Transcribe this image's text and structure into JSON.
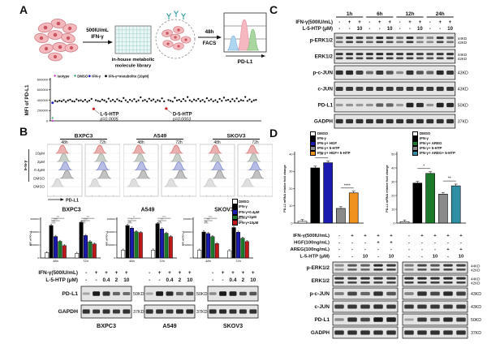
{
  "figure": {
    "panel_labels": {
      "A": "A",
      "B": "B",
      "C": "C",
      "D": "D"
    }
  },
  "colors": {
    "bar_white": "#ffffff",
    "bar_black": "#000000",
    "bar_blue": "#1a1ab0",
    "bar_green": "#1a7a2a",
    "bar_red": "#c01818",
    "bar_gray": "#8a8a8a",
    "bar_orange": "#f0921e",
    "bar_teal": "#2e8fa5",
    "isotype_magenta": "#cc00cc",
    "dmso_green": "#00a651",
    "ifn_blue": "#2020c0",
    "hit_red": "#cc2222",
    "scatter_black": "#111111"
  },
  "panelA": {
    "schematic": {
      "treatment": [
        "500IU/mL",
        "IFN-γ"
      ],
      "plate_caption": [
        "in-house metabolic",
        "molecule library"
      ],
      "facs": [
        "48h",
        "FACS"
      ],
      "facs_xlabel": "PD-L1"
    }
  },
  "panelB": {
    "flow": {
      "cell_lines": [
        "BXPC3",
        "A549",
        "SKOV3"
      ],
      "timepoints": [
        "48h",
        "72h"
      ],
      "dose_labels": [
        "10μM",
        "2μM",
        "0.4μM",
        "DMSO",
        "DMSO"
      ],
      "bracket_label": "IFN-γ",
      "xlabel": "PD-L1",
      "ridges": [
        {
          "color": "#d97070",
          "peak": 0.44
        },
        {
          "color": "#9aa89a",
          "peak": 0.48
        },
        {
          "color": "#7b86cf",
          "peak": 0.52
        },
        {
          "color": "#8f8f8f",
          "peak": 0.57
        },
        {
          "color": "#c4c4c4",
          "peak": 0.3
        }
      ]
    },
    "legend": [
      {
        "label": "DMSO",
        "color": "#ffffff"
      },
      {
        "label": "IFN-γ",
        "color": "#000000"
      },
      {
        "label": "IFN-γ+0.4μM",
        "color": "#1a1ab0"
      },
      {
        "label": "IFN-γ+2μM",
        "color": "#1a7a2a"
      },
      {
        "label": "IFN-γ+10μM",
        "color": "#c01818"
      }
    ],
    "wb": {
      "header_rows": [
        {
          "label": "IFN-γ(500IU/mL)",
          "values": [
            "-",
            "+",
            "+",
            "+",
            "+"
          ]
        },
        {
          "label": "L-5-HTP (μM)",
          "values": [
            "-",
            "-",
            "0.4",
            "2",
            "10"
          ]
        }
      ],
      "groups": [
        {
          "name": "BXPC3",
          "kd_visible": true
        },
        {
          "name": "A549",
          "kd_visible": true
        },
        {
          "name": "SKOV3",
          "kd_visible": false
        }
      ],
      "rows": [
        {
          "label": "PD-L1",
          "kd": "50KD",
          "bands": [
            [
              0.08,
              1,
              0.85,
              0.5,
              0.45
            ],
            [
              0.08,
              1,
              0.9,
              0.5,
              0.6
            ],
            [
              0.25,
              1,
              0.95,
              0.65,
              0.6
            ]
          ]
        },
        {
          "label": "GAPDH",
          "kd": "37KD",
          "bands": [
            [
              0.85,
              0.8,
              0.85,
              0.8,
              0.85
            ],
            [
              0.85,
              0.85,
              0.8,
              0.9,
              0.9
            ],
            [
              0.9,
              0.9,
              0.85,
              0.85,
              0.85
            ]
          ]
        }
      ]
    }
  },
  "panelC": {
    "timepoints": [
      "1h",
      "6h",
      "12h",
      "24h"
    ],
    "header_rows": [
      {
        "label": "IFN-γ(500IU/mL)",
        "values": [
          "-",
          "+",
          "+",
          "-",
          "+",
          "+",
          "-",
          "+",
          "+",
          "-",
          "+",
          "+"
        ]
      },
      {
        "label": "L-5-HTP (μM)",
        "values": [
          "-",
          "-",
          "10",
          "-",
          "-",
          "10",
          "-",
          "-",
          "10",
          "-",
          "-",
          "10"
        ]
      }
    ],
    "rows": [
      {
        "label": "p-ERK1/2",
        "kd": [
          "44KD",
          "42KD"
        ],
        "double": true,
        "bands": [
          0.5,
          0.85,
          0.75,
          0.55,
          0.9,
          0.7,
          0.45,
          0.9,
          0.35,
          0.3,
          0.8,
          0.5
        ]
      },
      {
        "label": "ERK1/2",
        "kd": [
          "44KD",
          "42KD"
        ],
        "double": true,
        "bands": [
          0.8,
          0.85,
          0.8,
          0.85,
          0.9,
          0.85,
          0.8,
          0.85,
          0.75,
          0.7,
          0.8,
          0.85
        ]
      },
      {
        "label": "p-c-JUN",
        "kd": [
          "43KD"
        ],
        "double": false,
        "bands": [
          0.85,
          0.9,
          0.75,
          0.45,
          0.8,
          0.6,
          0.25,
          0.85,
          0.6,
          0.5,
          0.9,
          0.8
        ]
      },
      {
        "label": "c-JUN",
        "kd": [
          "43KD"
        ],
        "double": false,
        "bands": [
          0.8,
          0.8,
          0.75,
          0.8,
          0.8,
          0.8,
          0.75,
          0.8,
          0.8,
          0.8,
          0.85,
          0.8
        ]
      },
      {
        "label": "PD-L1",
        "kd": [
          "50KD"
        ],
        "double": false,
        "bands": [
          0.15,
          0.2,
          0.15,
          0.2,
          0.55,
          0.5,
          0.15,
          0.95,
          0.85,
          0.2,
          0.95,
          0.9
        ]
      },
      {
        "label": "GADPH",
        "kd": [
          "37KD"
        ],
        "double": false,
        "bands": [
          0.85,
          0.85,
          0.85,
          0.85,
          0.85,
          0.85,
          0.85,
          0.85,
          0.85,
          0.85,
          0.85,
          0.85
        ]
      }
    ]
  },
  "panelD": {
    "header_rows": [
      {
        "label": "IFN-γ(500IU/mL)",
        "left": [
          "-",
          "+",
          "+",
          "+",
          "+"
        ],
        "right": [
          "-",
          "+",
          "+",
          "+",
          "+"
        ]
      },
      {
        "label": "HGF(100ng/mL)",
        "left": [
          "-",
          "-",
          "-",
          "+",
          "+"
        ],
        "right": [
          "-",
          "-",
          "-",
          "-",
          "-"
        ]
      },
      {
        "label": "AREG(100ng/mL)",
        "left": [
          "-",
          "-",
          "-",
          "-",
          "-"
        ],
        "right": [
          "-",
          "-",
          "-",
          "+",
          "+"
        ]
      },
      {
        "label": "L-5-HTP (μM)",
        "left": [
          "-",
          "-",
          "10",
          "-",
          "10"
        ],
        "right": [
          "-",
          "-",
          "10",
          "-",
          "10"
        ]
      }
    ],
    "rows": [
      {
        "label": "p-ERK1/2",
        "kd": [
          "44KD",
          "42KD"
        ],
        "double": true,
        "left": [
          0.25,
          0.6,
          0.55,
          0.9,
          0.8
        ],
        "right": [
          0.35,
          0.7,
          0.6,
          0.8,
          0.75
        ]
      },
      {
        "label": "ERK1/2",
        "kd": [
          "44KD",
          "42KD"
        ],
        "double": true,
        "left": [
          0.8,
          0.8,
          0.85,
          0.8,
          0.8
        ],
        "right": [
          0.85,
          0.9,
          0.85,
          0.9,
          0.85
        ]
      },
      {
        "label": "p-c-JUN",
        "kd": [
          "43KD"
        ],
        "double": false,
        "left": [
          0.35,
          0.7,
          0.5,
          0.85,
          0.6
        ],
        "right": [
          0.3,
          0.85,
          0.7,
          0.9,
          0.75
        ]
      },
      {
        "label": "c-JUN",
        "kd": [
          "43KD"
        ],
        "double": false,
        "left": [
          0.75,
          0.8,
          0.8,
          0.85,
          0.8
        ],
        "right": [
          0.8,
          0.8,
          0.8,
          0.8,
          0.8
        ]
      },
      {
        "label": "PD-L1",
        "kd": [
          "50KD"
        ],
        "double": false,
        "left": [
          0.25,
          0.85,
          0.7,
          1,
          0.95
        ],
        "right": [
          0.1,
          0.8,
          0.6,
          0.9,
          0.8
        ]
      },
      {
        "label": "GADPH",
        "kd": [
          "37KD"
        ],
        "double": false,
        "left": [
          0.85,
          0.85,
          0.85,
          0.85,
          0.85
        ],
        "right": [
          0.85,
          0.85,
          0.85,
          0.85,
          0.85
        ]
      }
    ]
  },
  "chart_data": [
    {
      "id": "mfi-screen",
      "type": "scatter",
      "ylabel": "MFI of PD-L1",
      "ylim": [
        0,
        800000
      ],
      "yticks": [
        0,
        200000,
        400000,
        600000,
        800000
      ],
      "legend": [
        {
          "label": "isotype",
          "color": "#cc00cc",
          "marker": "plus"
        },
        {
          "label": "DMSO",
          "color": "#00a651",
          "marker": "plus"
        },
        {
          "label": "IFN-γ",
          "color": "#2020c0",
          "marker": "dot"
        },
        {
          "label": "IFN-γ+metabolite (10μM)",
          "color": "#000000",
          "marker": "dot"
        }
      ],
      "controls": [
        {
          "label": "isotype",
          "value_thousands": 8,
          "color": "#cc00cc",
          "marker": "plus"
        },
        {
          "label": "DMSO",
          "value_thousands": 60,
          "color": "#00a651",
          "marker": "plus"
        },
        {
          "label": "IFN-γ",
          "value_thousands": 350,
          "color": "#2020c0",
          "marker": "dot"
        }
      ],
      "mfi_values_thousands": [
        385,
        372,
        390,
        378,
        402,
        368,
        395,
        410,
        380,
        374,
        415,
        388,
        398,
        376,
        405,
        370,
        392,
        425,
        232,
        400,
        385,
        378,
        412,
        395,
        368,
        430,
        382,
        406,
        374,
        418,
        390,
        377,
        442,
        398,
        365,
        408,
        384,
        420,
        372,
        396,
        455,
        386,
        403,
        375,
        428,
        391,
        414,
        369,
        399,
        383,
        435,
        379,
        238,
        402,
        388,
        372,
        446,
        394,
        407,
        376,
        421,
        385,
        460,
        397,
        373,
        411,
        389,
        426,
        381,
        404,
        370,
        438,
        392,
        416,
        378,
        400,
        366,
        423,
        387,
        450,
        395,
        408,
        374,
        419,
        383,
        432,
        377,
        401,
        390,
        462,
        386,
        413,
        371,
        397,
        405
      ],
      "hits": [
        {
          "index": 18,
          "label": "L-5-HTP",
          "p": "p=0.0005",
          "color": "#cc2222"
        },
        {
          "index": 52,
          "label": "D-5-HTP",
          "p": "p=0.0003",
          "color": "#cc2222"
        }
      ]
    },
    {
      "id": "bxpc3-mfi",
      "type": "bar",
      "title": "BXPC3",
      "ylabel": "MFI of PD-L1",
      "categories": [
        "48h",
        "72h"
      ],
      "ylim": [
        0,
        600000
      ],
      "yticks": [
        0,
        200000,
        400000,
        600000
      ],
      "series": [
        {
          "name": "DMSO",
          "color": "#ffffff",
          "values": [
            80000,
            70000
          ]
        },
        {
          "name": "IFN-γ",
          "color": "#000000",
          "values": [
            500000,
            550000
          ]
        },
        {
          "name": "IFN-γ+0.4μM",
          "color": "#1a1ab0",
          "values": [
            330000,
            345000
          ]
        },
        {
          "name": "IFN-γ+2μM",
          "color": "#1a7a2a",
          "values": [
            255000,
            250000
          ]
        },
        {
          "name": "IFN-γ+10μM",
          "color": "#c01818",
          "values": [
            190000,
            215000
          ]
        }
      ],
      "sig": [
        [
          "****",
          "****",
          "***"
        ],
        [
          "****",
          "****",
          "***"
        ]
      ]
    },
    {
      "id": "a549-mfi",
      "type": "bar",
      "title": "A549",
      "ylabel": "MFI of PD-L1",
      "categories": [
        "48h",
        "72h"
      ],
      "ylim": [
        0,
        150000
      ],
      "yticks": [
        0,
        50000,
        100000,
        150000
      ],
      "series": [
        {
          "name": "DMSO",
          "color": "#ffffff",
          "values": [
            30000,
            30000
          ]
        },
        {
          "name": "IFN-γ",
          "color": "#000000",
          "values": [
            125000,
            132000
          ]
        },
        {
          "name": "IFN-γ+0.4μM",
          "color": "#1a1ab0",
          "values": [
            115000,
            112000
          ]
        },
        {
          "name": "IFN-γ+2μM",
          "color": "#1a7a2a",
          "values": [
            101000,
            95000
          ]
        },
        {
          "name": "IFN-γ+10μM",
          "color": "#c01818",
          "values": [
            98000,
            82000
          ]
        }
      ],
      "sig": [
        [
          "ns",
          "*",
          "**"
        ],
        [
          "ns",
          "**",
          "****"
        ]
      ]
    },
    {
      "id": "skov3-mfi",
      "type": "bar",
      "title": "SKOV3",
      "ylabel": "MFI of PD-L1",
      "categories": [
        "48h",
        "72h"
      ],
      "ylim": [
        0,
        150000
      ],
      "yticks": [
        0,
        50000,
        100000,
        150000
      ],
      "series": [
        {
          "name": "DMSO",
          "color": "#ffffff",
          "values": [
            30000,
            28000
          ]
        },
        {
          "name": "IFN-γ",
          "color": "#000000",
          "values": [
            100000,
            117000
          ]
        },
        {
          "name": "IFN-γ+0.4μM",
          "color": "#1a1ab0",
          "values": [
            94000,
            99000
          ]
        },
        {
          "name": "IFN-γ+2μM",
          "color": "#1a7a2a",
          "values": [
            82000,
            76000
          ]
        },
        {
          "name": "IFN-γ+10μM",
          "color": "#c01818",
          "values": [
            55000,
            63000
          ]
        }
      ],
      "sig": [
        [
          "ns",
          "***",
          "****"
        ],
        [
          "*",
          "***",
          "****"
        ]
      ]
    },
    {
      "id": "pdl1-mrna-hgf",
      "type": "bar",
      "title": "",
      "ylabel": "PD-L1 mRNA relative fold change",
      "categories": [
        ""
      ],
      "ylim": [
        0,
        40
      ],
      "yticks": [
        0,
        10,
        20,
        30,
        40
      ],
      "series": [
        {
          "name": "DMSO",
          "color": "#ffffff",
          "values": [
            1
          ]
        },
        {
          "name": "IFN-γ",
          "color": "#000000",
          "values": [
            32
          ]
        },
        {
          "name": "IFN-γ+ HGF",
          "color": "#1a1ab0",
          "values": [
            35
          ]
        },
        {
          "name": "IFN-γ+ 5-HTP",
          "color": "#8a8a8a",
          "values": [
            8.5
          ]
        },
        {
          "name": "IFN-γ+ HGF+ 5-HTP",
          "color": "#f0921e",
          "values": [
            17.5
          ]
        }
      ],
      "sig_pairs": [
        {
          "from": 1,
          "to": 2,
          "label": "**"
        },
        {
          "from": 3,
          "to": 4,
          "label": "****"
        }
      ]
    },
    {
      "id": "pdl1-mrna-areg",
      "type": "bar",
      "title": "",
      "ylabel": "PD-L1 mRNA relative fold change",
      "categories": [
        ""
      ],
      "ylim": [
        0,
        50
      ],
      "yticks": [
        0,
        10,
        20,
        30,
        40,
        50
      ],
      "series": [
        {
          "name": "DMSO",
          "color": "#ffffff",
          "values": [
            1
          ]
        },
        {
          "name": "IFN-γ",
          "color": "#000000",
          "values": [
            29
          ]
        },
        {
          "name": "IFN-γ+ AREG",
          "color": "#1a7a2a",
          "values": [
            36
          ]
        },
        {
          "name": "IFN-γ+ 5-HTP",
          "color": "#8a8a8a",
          "values": [
            21
          ]
        },
        {
          "name": "IFN-γ+ AREG+ 5-HTP",
          "color": "#2e8fa5",
          "values": [
            27
          ]
        }
      ],
      "sig_pairs": [
        {
          "from": 1,
          "to": 2,
          "label": "*"
        },
        {
          "from": 3,
          "to": 4,
          "label": "**"
        }
      ]
    }
  ]
}
